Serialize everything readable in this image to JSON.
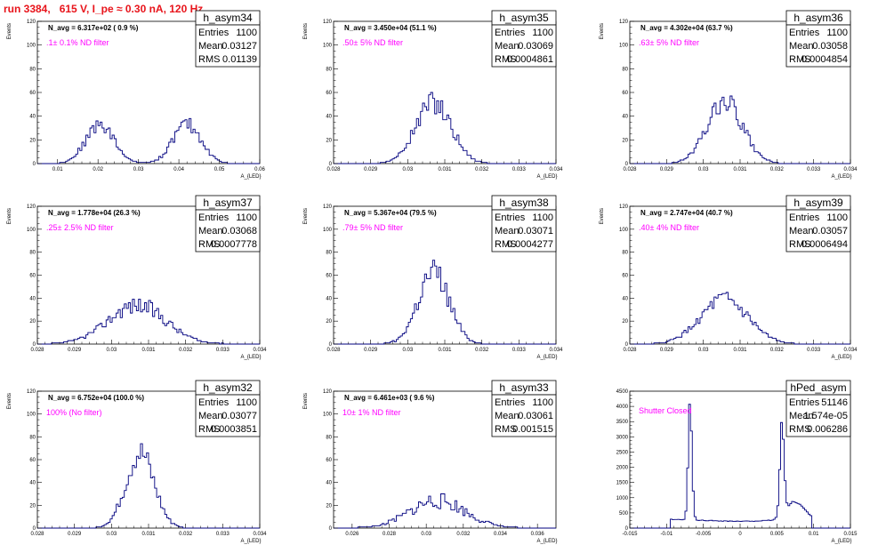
{
  "title": "run 3384,   615 V, I_pe ≈ 0.30 nA, 120 Hz",
  "chart_data": [
    {
      "type": "bar",
      "name": "h_asym34",
      "navg": "N_avg = 6.317e+02 ( 0.9 %)",
      "filter": ".1± 0.1% ND filter",
      "stats": {
        "entries": "1100",
        "mean": "0.03127",
        "rms": "0.01139"
      },
      "xlabel": "A_{LED}",
      "ylabel": "Events",
      "xlim": [
        0.005,
        0.06
      ],
      "ylim": [
        0,
        120
      ],
      "xticks": [
        0.01,
        0.02,
        0.03,
        0.04,
        0.05,
        0.06
      ],
      "xtick_labels": [
        "0.01",
        "0.02",
        "0.03",
        "0.04",
        "0.05",
        "0.06"
      ],
      "yticks": [
        0,
        20,
        40,
        60,
        80,
        100,
        120
      ],
      "shape": {
        "peaks": [
          [
            0.0205,
            0.0035,
            33
          ],
          [
            0.042,
            0.0035,
            33
          ]
        ],
        "seed": 34,
        "nbins": 110,
        "noise": 0.18
      }
    },
    {
      "type": "bar",
      "name": "h_asym35",
      "navg": "N_avg = 3.450e+04 (51.1 %)",
      "filter": ".50± 5% ND filter",
      "stats": {
        "entries": "1100",
        "mean": "0.03069",
        "rms": "0.0004861"
      },
      "xlabel": "A_{LED}",
      "ylabel": "Events",
      "xlim": [
        0.028,
        0.034
      ],
      "ylim": [
        0,
        120
      ],
      "xticks": [
        0.028,
        0.029,
        0.03,
        0.031,
        0.032,
        0.033,
        0.034
      ],
      "xtick_labels": [
        "0.028",
        "0.029",
        "0.03",
        "0.031",
        "0.032",
        "0.033",
        "0.034"
      ],
      "yticks": [
        0,
        20,
        40,
        60,
        80,
        100,
        120
      ],
      "shape": {
        "peaks": [
          [
            0.0307,
            0.00048,
            52
          ]
        ],
        "seed": 35,
        "nbins": 110,
        "noise": 0.2
      }
    },
    {
      "type": "bar",
      "name": "h_asym36",
      "navg": "N_avg = 4.302e+04 (63.7 %)",
      "filter": ".63± 5% ND filter",
      "stats": {
        "entries": "1100",
        "mean": "0.03058",
        "rms": "0.0004854"
      },
      "xlabel": "A_{LED}",
      "ylabel": "Events",
      "xlim": [
        0.028,
        0.034
      ],
      "ylim": [
        0,
        120
      ],
      "xticks": [
        0.028,
        0.029,
        0.03,
        0.031,
        0.032,
        0.033,
        0.034
      ],
      "xtick_labels": [
        "0.028",
        "0.029",
        "0.03",
        "0.031",
        "0.032",
        "0.033",
        "0.034"
      ],
      "yticks": [
        0,
        20,
        40,
        60,
        80,
        100,
        120
      ],
      "shape": {
        "peaks": [
          [
            0.03058,
            0.00048,
            52
          ]
        ],
        "seed": 36,
        "nbins": 110,
        "noise": 0.2
      }
    },
    {
      "type": "bar",
      "name": "h_asym37",
      "navg": "N_avg = 1.778e+04 (26.3 %)",
      "filter": ".25± 2.5% ND filter",
      "stats": {
        "entries": "1100",
        "mean": "0.03068",
        "rms": "0.0007778"
      },
      "xlabel": "A_{LED}",
      "ylabel": "Events",
      "xlim": [
        0.028,
        0.034
      ],
      "ylim": [
        0,
        120
      ],
      "xticks": [
        0.028,
        0.029,
        0.03,
        0.031,
        0.032,
        0.033,
        0.034
      ],
      "xtick_labels": [
        "0.028",
        "0.029",
        "0.03",
        "0.031",
        "0.032",
        "0.033",
        "0.034"
      ],
      "yticks": [
        0,
        20,
        40,
        60,
        80,
        100,
        120
      ],
      "shape": {
        "peaks": [
          [
            0.03068,
            0.00078,
            34
          ]
        ],
        "seed": 37,
        "nbins": 110,
        "noise": 0.22
      }
    },
    {
      "type": "bar",
      "name": "h_asym38",
      "navg": "N_avg = 5.367e+04 (79.5 %)",
      "filter": ".79± 5% ND filter",
      "stats": {
        "entries": "1100",
        "mean": "0.03071",
        "rms": "0.0004277"
      },
      "xlabel": "A_{LED}",
      "ylabel": "Events",
      "xlim": [
        0.028,
        0.034
      ],
      "ylim": [
        0,
        120
      ],
      "xticks": [
        0.028,
        0.029,
        0.03,
        0.031,
        0.032,
        0.033,
        0.034
      ],
      "xtick_labels": [
        "0.028",
        "0.029",
        "0.03",
        "0.031",
        "0.032",
        "0.033",
        "0.034"
      ],
      "yticks": [
        0,
        20,
        40,
        60,
        80,
        100,
        120
      ],
      "shape": {
        "peaks": [
          [
            0.0307,
            0.00042,
            62
          ]
        ],
        "seed": 38,
        "nbins": 110,
        "noise": 0.22
      }
    },
    {
      "type": "bar",
      "name": "h_asym39",
      "navg": "N_avg = 2.747e+04 (40.7 %)",
      "filter": ".40± 4% ND filter",
      "stats": {
        "entries": "1100",
        "mean": "0.03057",
        "rms": "0.0006494"
      },
      "xlabel": "A_{LED}",
      "ylabel": "Events",
      "xlim": [
        0.028,
        0.034
      ],
      "ylim": [
        0,
        120
      ],
      "xticks": [
        0.028,
        0.029,
        0.03,
        0.031,
        0.032,
        0.033,
        0.034
      ],
      "xtick_labels": [
        "0.028",
        "0.029",
        "0.03",
        "0.031",
        "0.032",
        "0.033",
        "0.034"
      ],
      "yticks": [
        0,
        20,
        40,
        60,
        80,
        100,
        120
      ],
      "shape": {
        "peaks": [
          [
            0.03057,
            0.00065,
            38
          ]
        ],
        "seed": 39,
        "nbins": 110,
        "noise": 0.2
      }
    },
    {
      "type": "bar",
      "name": "h_asym32",
      "navg": "N_avg = 6.752e+04 (100.0 %)",
      "filter": "100% (No filter)",
      "stats": {
        "entries": "1100",
        "mean": "0.03077",
        "rms": "0.0003851"
      },
      "xlabel": "A_{LED}",
      "ylabel": "Events",
      "xlim": [
        0.028,
        0.034
      ],
      "ylim": [
        0,
        120
      ],
      "xticks": [
        0.028,
        0.029,
        0.03,
        0.031,
        0.032,
        0.033,
        0.034
      ],
      "xtick_labels": [
        "0.028",
        "0.029",
        "0.03",
        "0.031",
        "0.032",
        "0.033",
        "0.034"
      ],
      "yticks": [
        0,
        20,
        40,
        60,
        80,
        100,
        120
      ],
      "shape": {
        "peaks": [
          [
            0.03077,
            0.00038,
            66
          ]
        ],
        "seed": 32,
        "nbins": 110,
        "noise": 0.2
      }
    },
    {
      "type": "bar",
      "name": "h_asym33",
      "navg": "N_avg = 6.461e+03 ( 9.6 %)",
      "filter": "10± 1% ND filter",
      "stats": {
        "entries": "1100",
        "mean": "0.03061",
        "rms": "0.001515"
      },
      "xlabel": "A_{LED}",
      "ylabel": "Events",
      "xlim": [
        0.025,
        0.037
      ],
      "ylim": [
        0,
        120
      ],
      "xticks": [
        0.026,
        0.028,
        0.03,
        0.032,
        0.034,
        0.036
      ],
      "xtick_labels": [
        "0.026",
        "0.028",
        "0.03",
        "0.032",
        "0.034",
        "0.036"
      ],
      "yticks": [
        0,
        20,
        40,
        60,
        80,
        100,
        120
      ],
      "shape": {
        "peaks": [
          [
            0.0306,
            0.0015,
            24
          ]
        ],
        "seed": 33,
        "nbins": 110,
        "noise": 0.3
      }
    },
    {
      "type": "bar",
      "name": "hPed_asym",
      "navg": "",
      "filter": "Shutter Closed",
      "stats": {
        "entries": "51146",
        "mean": "1.574e-05",
        "rms": "0.006286"
      },
      "xlabel": "A_{LED}",
      "ylabel": "",
      "xlim": [
        -0.015,
        0.015
      ],
      "ylim": [
        0,
        4500
      ],
      "xticks": [
        -0.015,
        -0.01,
        -0.005,
        0,
        0.005,
        0.01,
        0.015
      ],
      "xtick_labels": [
        "-0.015",
        "-0.01",
        "-0.005",
        "0",
        "0.005",
        "0.01",
        "0.015"
      ],
      "yticks": [
        0,
        500,
        1000,
        1500,
        2000,
        2500,
        3000,
        3500,
        4000,
        4500
      ],
      "shape": {
        "pedestal": true,
        "seed": 99,
        "nbins": 120,
        "noise": 0.05
      }
    }
  ]
}
